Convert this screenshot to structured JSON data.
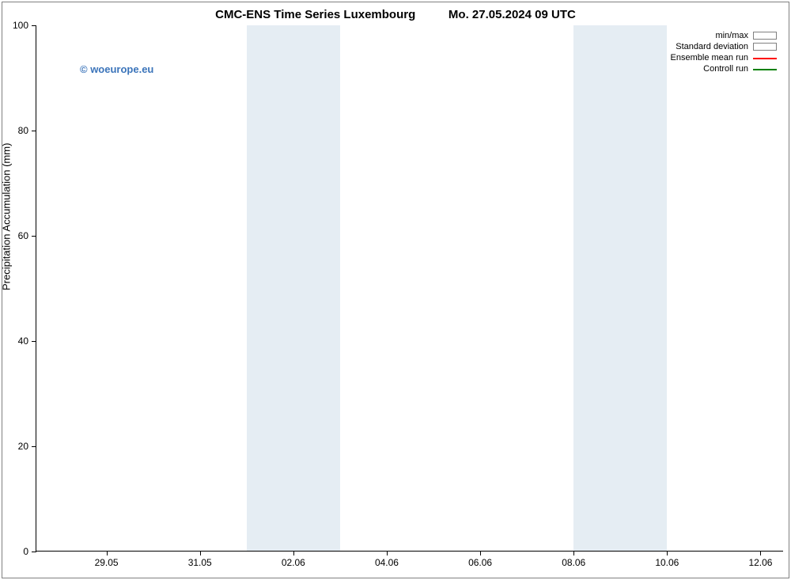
{
  "title": "CMC-ENS Time Series Luxembourg          Mo. 27.05.2024 09 UTC",
  "watermark": "© woeurope.eu",
  "ylabel": "Precipitation Accumulation (mm)",
  "colors": {
    "watermark": "#3b74ba",
    "shade": "#e5edf3",
    "minmax_border": "#808080",
    "std_border": "#808080",
    "ensemble_line": "#ff0000",
    "controll_line": "#008000",
    "frame_border": "#808080",
    "tick": "#000000",
    "text": "#000000"
  },
  "plot": {
    "y": {
      "min": 0,
      "max": 100,
      "ticks": [
        {
          "v": 0,
          "label": "0"
        },
        {
          "v": 20,
          "label": "20"
        },
        {
          "v": 40,
          "label": "40"
        },
        {
          "v": 60,
          "label": "60"
        },
        {
          "v": 80,
          "label": "80"
        },
        {
          "v": 100,
          "label": "100"
        }
      ]
    },
    "x": {
      "min": 0,
      "max": 16,
      "ticks": [
        {
          "v": 1.5,
          "label": "29.05"
        },
        {
          "v": 3.5,
          "label": "31.05"
        },
        {
          "v": 5.5,
          "label": "02.06"
        },
        {
          "v": 7.5,
          "label": "04.06"
        },
        {
          "v": 9.5,
          "label": "06.06"
        },
        {
          "v": 11.5,
          "label": "08.06"
        },
        {
          "v": 13.5,
          "label": "10.06"
        },
        {
          "v": 15.5,
          "label": "12.06"
        }
      ]
    },
    "shaded_bands": [
      {
        "from": 4.5,
        "to": 5.5
      },
      {
        "from": 5.5,
        "to": 6.5
      },
      {
        "from": 11.5,
        "to": 12.5
      },
      {
        "from": 12.5,
        "to": 13.5
      }
    ],
    "series": {
      "minmax": [],
      "std": [],
      "ensemble_mean_run": [],
      "controll_run": []
    }
  },
  "legend": [
    {
      "label": "min/max",
      "type": "box",
      "swatch_key": "minmax"
    },
    {
      "label": "Standard deviation",
      "type": "box",
      "swatch_key": "std"
    },
    {
      "label": "Ensemble mean run",
      "type": "line",
      "swatch_key": "ensemble"
    },
    {
      "label": "Controll run",
      "type": "line",
      "swatch_key": "controll"
    }
  ]
}
